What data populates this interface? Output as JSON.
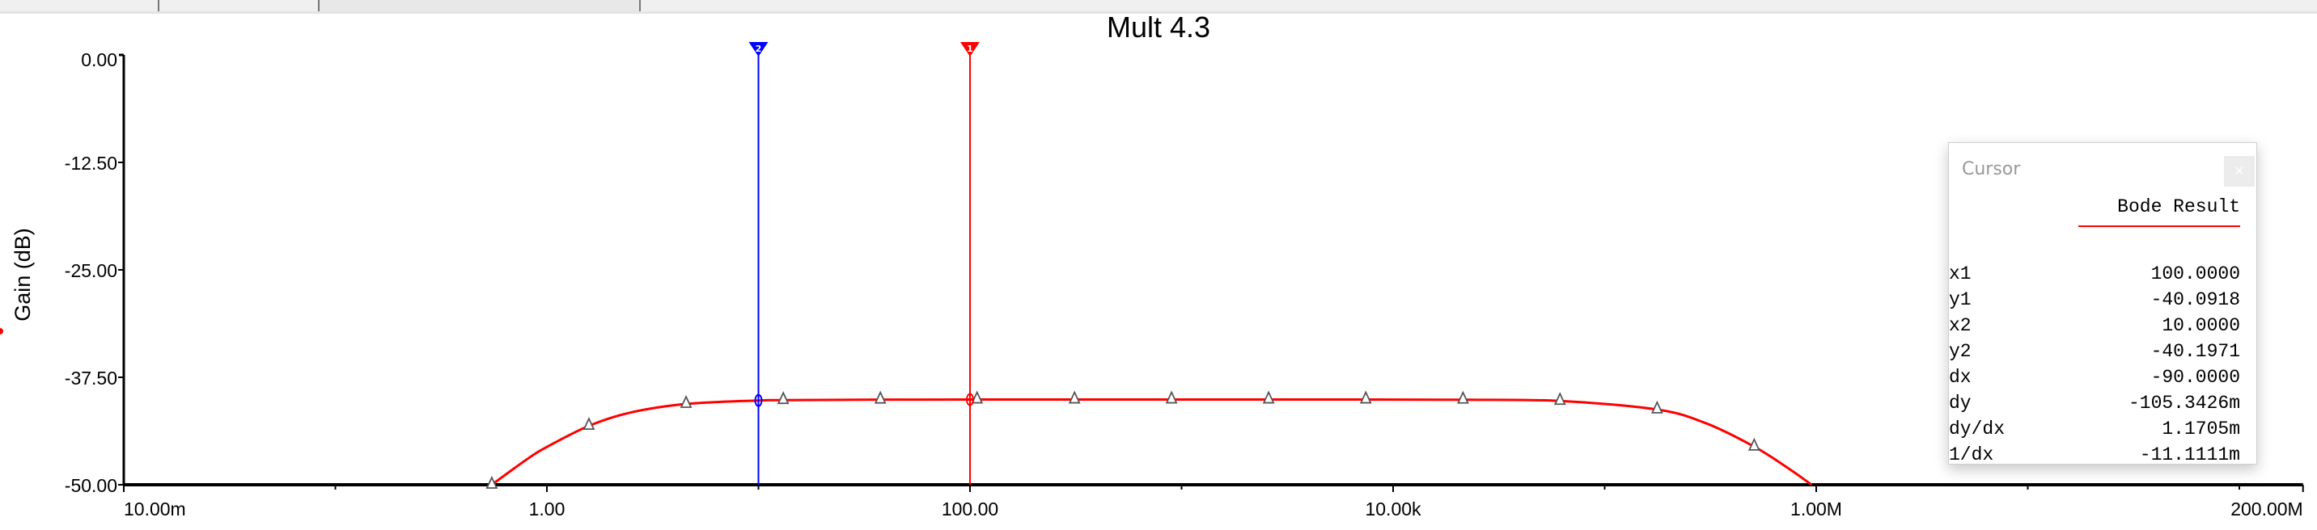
{
  "tabs": [
    {
      "selected": false
    },
    {
      "selected": false
    },
    {
      "selected": true
    },
    {
      "selected": false
    }
  ],
  "chart_data": {
    "type": "line",
    "title": "Mult 4.3",
    "xlabel": "",
    "ylabel": "Gain (dB)",
    "xscale": "log",
    "xlim": [
      0.01,
      200000000
    ],
    "ylim": [
      -50,
      0
    ],
    "xticks": [
      {
        "value": 0.01,
        "label": "10.00m"
      },
      {
        "value": 1,
        "label": "1.00"
      },
      {
        "value": 100,
        "label": "100.00"
      },
      {
        "value": 10000,
        "label": "10.00k"
      },
      {
        "value": 1000000,
        "label": "1.00M"
      },
      {
        "value": 200000000,
        "label": "200.00M"
      }
    ],
    "xminor_ticks": [
      0.1,
      10,
      1000,
      100000,
      10000000,
      100000000
    ],
    "yticks": [
      {
        "value": 0,
        "label": "0.00"
      },
      {
        "value": -12.5,
        "label": "-12.50"
      },
      {
        "value": -25,
        "label": "-25.00"
      },
      {
        "value": -37.5,
        "label": "-37.50"
      },
      {
        "value": -50,
        "label": "-50.00"
      }
    ],
    "grid": false,
    "series": [
      {
        "name": "Bode Result",
        "color": "#ff0000",
        "x": [
          0.549,
          0.8,
          1.0,
          1.58,
          2.5,
          4.55,
          10,
          13.1,
          37.7,
          100,
          108,
          312,
          897,
          2580,
          7430,
          21400,
          61500,
          177000,
          300000,
          509000,
          750000,
          950000
        ],
        "y": [
          -50.0,
          -47.08,
          -45.6,
          -43.15,
          -41.58,
          -40.6,
          -40.2,
          -40.15,
          -40.1,
          -40.09,
          -40.09,
          -40.09,
          -40.09,
          -40.09,
          -40.09,
          -40.11,
          -40.25,
          -41.25,
          -42.83,
          -45.57,
          -48.2,
          -50.0
        ],
        "markers_x": [
          0.549,
          1.58,
          4.55,
          13.1,
          37.7,
          108,
          312,
          897,
          2580,
          7430,
          21400,
          61500,
          177000,
          509000
        ]
      }
    ],
    "cursors": [
      {
        "id": "1",
        "x": 100,
        "y": -40.0918,
        "color": "#ff0000"
      },
      {
        "id": "2",
        "x": 10,
        "y": -40.1971,
        "color": "#0000ff"
      }
    ]
  },
  "cursor_panel": {
    "title": "Cursor",
    "close": "×",
    "series_label": "Bode Result",
    "rows": [
      {
        "label": "x1",
        "value": "100.0000"
      },
      {
        "label": "y1",
        "value": "-40.0918"
      },
      {
        "label": "x2",
        "value": "10.0000"
      },
      {
        "label": "y2",
        "value": "-40.1971"
      },
      {
        "label": "dx",
        "value": "-90.0000"
      },
      {
        "label": "dy",
        "value": "-105.3426m"
      },
      {
        "label": "dy/dx",
        "value": "1.1705m"
      },
      {
        "label": "1/dx",
        "value": "-11.1111m"
      }
    ]
  }
}
